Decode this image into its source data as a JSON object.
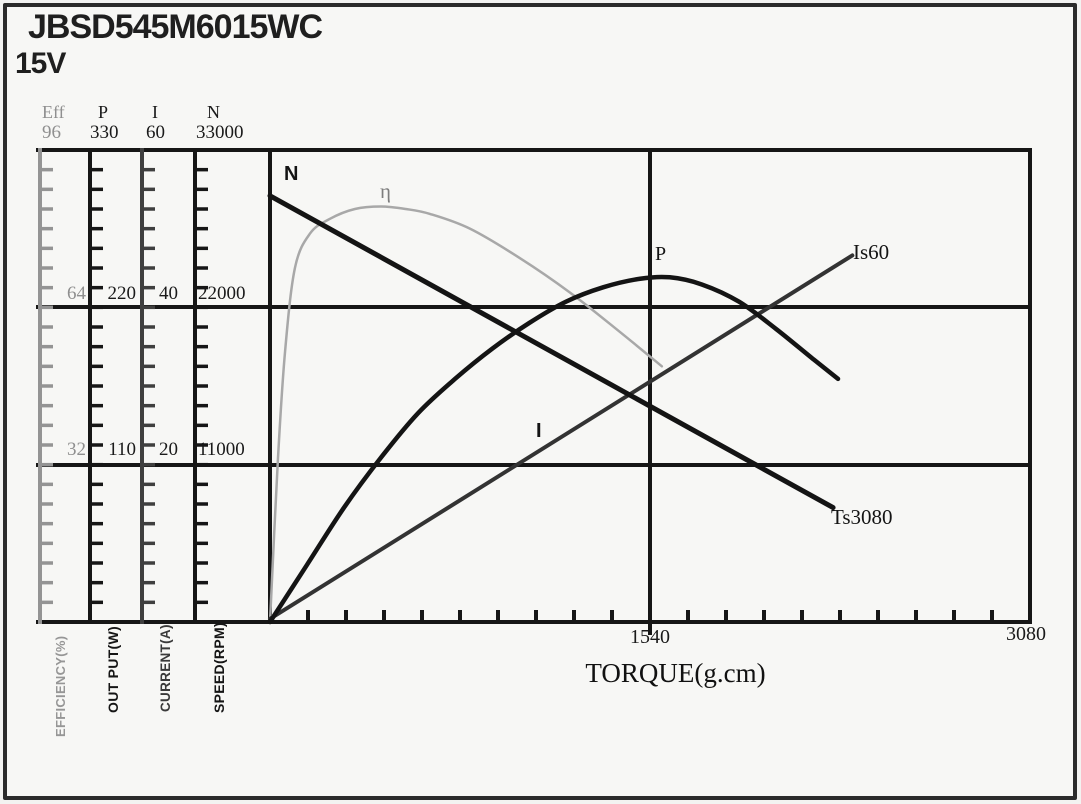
{
  "window": {
    "title": "JBSD545M6015WC",
    "voltage": "15V"
  },
  "scale_headers": {
    "eff": "Eff",
    "power": "P",
    "current": "I",
    "speed": "N"
  },
  "scale_values": {
    "top": {
      "eff": "96",
      "power": "330",
      "current": "60",
      "speed": "33000"
    },
    "mid": {
      "eff": "64",
      "power": "220",
      "current": "40",
      "speed": "22000"
    },
    "low": {
      "eff": "32",
      "power": "110",
      "current": "20",
      "speed": "11000"
    }
  },
  "axis_units": {
    "eff": "EFFICIENCY(%)",
    "power": "OUT PUT(W)",
    "current": "CURRENT(A)",
    "speed": "SPEED(RPM)"
  },
  "x_axis": {
    "mid": "1540",
    "max": "3080",
    "title": "TORQUE(g.cm)"
  },
  "curve_labels": {
    "speed": "N",
    "efficiency": "η",
    "power": "P",
    "current": "I",
    "stall_current": "Is60",
    "stall_torque": "Ts3080"
  },
  "chart_data": {
    "type": "line",
    "title": "JBSD545M6015WC 15V",
    "xlabel": "TORQUE(g.cm)",
    "x_range": [
      0,
      3080
    ],
    "x_tick_labels": [
      1540,
      3080
    ],
    "grid": "major lines at x=1540 and at 1/3, 2/3 of each y-scale",
    "legend_position": "inline curve labels",
    "axes": [
      {
        "key": "eff",
        "name": "EFFICIENCY(%)",
        "max": 96,
        "ticks": [
          32,
          64,
          96
        ]
      },
      {
        "key": "power",
        "name": "OUT PUT(W)",
        "max": 330,
        "ticks": [
          110,
          220,
          330
        ]
      },
      {
        "key": "current",
        "name": "CURRENT(A)",
        "max": 60,
        "ticks": [
          20,
          40,
          60
        ]
      },
      {
        "key": "speed",
        "name": "SPEED(RPM)",
        "max": 33000,
        "ticks": [
          11000,
          22000,
          33000
        ]
      }
    ],
    "series": [
      {
        "name": "η",
        "key": "efficiency",
        "axis": "eff",
        "unit": "%",
        "color": "#a8a8a8",
        "width": 2.5,
        "points": [
          [
            0,
            0
          ],
          [
            32,
            33
          ],
          [
            61,
            55
          ],
          [
            101,
            72
          ],
          [
            162,
            79
          ],
          [
            243,
            82
          ],
          [
            344,
            84
          ],
          [
            450,
            84.5
          ],
          [
            550,
            84
          ],
          [
            648,
            83
          ],
          [
            810,
            80
          ],
          [
            1013,
            74
          ],
          [
            1216,
            67
          ],
          [
            1418,
            59
          ],
          [
            1588,
            52
          ]
        ]
      },
      {
        "name": "I",
        "key": "current",
        "axis": "current",
        "unit": "A",
        "color": "#333333",
        "width": 4,
        "points": [
          [
            0,
            0.4
          ],
          [
            2360,
            46.6
          ]
        ]
      },
      {
        "name": "P",
        "key": "power",
        "axis": "power",
        "unit": "W",
        "color": "#141414",
        "width": 4.5,
        "points": [
          [
            0,
            0
          ],
          [
            150,
            40
          ],
          [
            300,
            80
          ],
          [
            450,
            115
          ],
          [
            600,
            146
          ],
          [
            750,
            170
          ],
          [
            900,
            191
          ],
          [
            1050,
            209
          ],
          [
            1200,
            224
          ],
          [
            1350,
            234
          ],
          [
            1500,
            240
          ],
          [
            1620,
            241
          ],
          [
            1750,
            236
          ],
          [
            1900,
            224
          ],
          [
            2050,
            205
          ],
          [
            2200,
            184
          ],
          [
            2302,
            170
          ]
        ]
      },
      {
        "name": "N",
        "key": "speed",
        "axis": "speed",
        "unit": "RPM",
        "color": "#141414",
        "width": 5,
        "points": [
          [
            0,
            29800
          ],
          [
            2282,
            8000
          ]
        ]
      }
    ],
    "annotations": [
      {
        "text": "Is60",
        "attached_to": "end of current line"
      },
      {
        "text": "Ts3080",
        "attached_to": "end of speed line"
      }
    ]
  }
}
